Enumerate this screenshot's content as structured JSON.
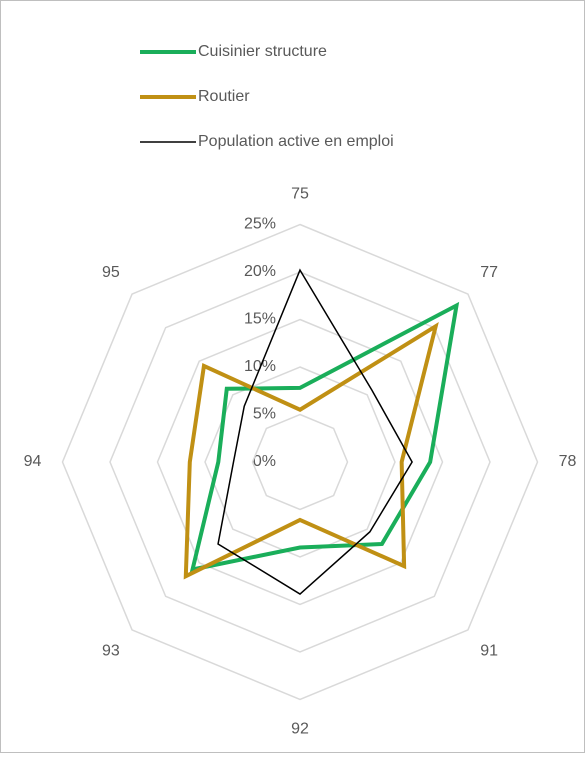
{
  "chart_data": {
    "type": "radar",
    "categories": [
      "75",
      "77",
      "78",
      "91",
      "92",
      "93",
      "94",
      "95"
    ],
    "series": [
      {
        "name": "Cuisinier structure",
        "color": "#1aae5a",
        "values": [
          7.8,
          23.3,
          13.7,
          12.2,
          9,
          16,
          8.6,
          10.9
        ]
      },
      {
        "name": "Routier",
        "color": "#c09014",
        "values": [
          5.5,
          20.2,
          10.7,
          15.5,
          6.1,
          17,
          11.6,
          14.3
        ]
      },
      {
        "name": "Population active en emploi",
        "color": "#000000",
        "values": [
          20.2,
          10.7,
          11.8,
          10.4,
          13.9,
          12.2,
          7,
          8.3
        ]
      }
    ],
    "ylim": [
      0,
      25
    ],
    "yticks": [
      {
        "value": 0,
        "label": "0%"
      },
      {
        "value": 5,
        "label": "5%"
      },
      {
        "value": 10,
        "label": "10%"
      },
      {
        "value": 15,
        "label": "15%"
      },
      {
        "value": 20,
        "label": "20%"
      },
      {
        "value": 25,
        "label": "25%"
      }
    ],
    "grid": true
  }
}
